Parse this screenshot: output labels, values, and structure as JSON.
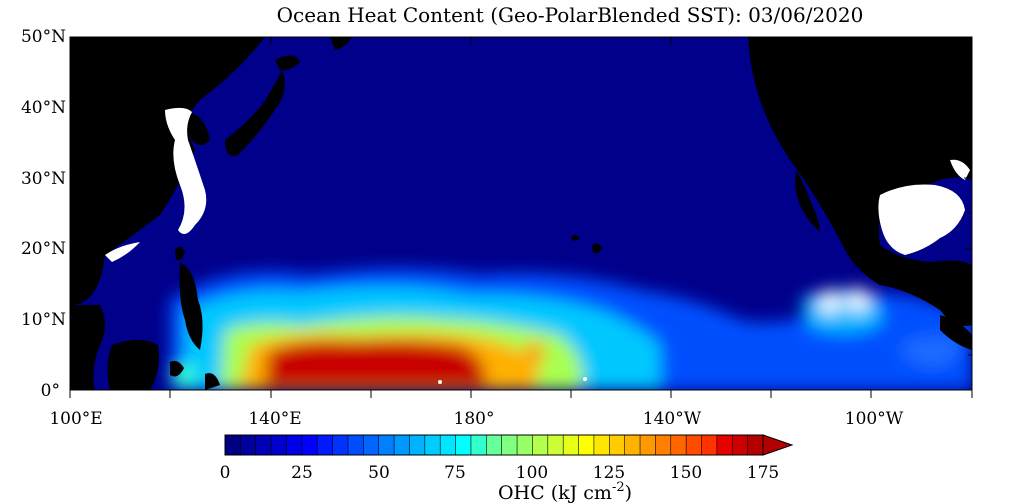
{
  "title": "Ocean Heat Content (Geo-PolarBlended SST): 03/06/2020",
  "map": {
    "lat_labels": [
      "50°N",
      "40°N",
      "30°N",
      "20°N",
      "10°N",
      "0°"
    ],
    "lon_labels": [
      "100°E",
      "140°E",
      "180°",
      "140°W",
      "100°W"
    ],
    "extent": {
      "lon_min_east": 100,
      "lon_max_east": 280,
      "lat_min": 0,
      "lat_max": 50
    },
    "colors": {
      "land": "#000000",
      "ocean_low": "#00008b",
      "no_data": "#ffffff"
    }
  },
  "colorbar": {
    "tick_labels": [
      "0",
      "25",
      "50",
      "75",
      "100",
      "125",
      "150",
      "175"
    ],
    "label": "OHC (kJ cm",
    "label_exponent": "-2",
    "label_close": ")",
    "min": 0,
    "max": 175,
    "extend": "max",
    "colors": [
      "#000080",
      "#00009d",
      "#0000b5",
      "#0000cd",
      "#0000e6",
      "#0000ff",
      "#0019ff",
      "#0033ff",
      "#004cff",
      "#0066ff",
      "#0080ff",
      "#0099ff",
      "#00b3ff",
      "#00ccff",
      "#00e6ff",
      "#00ffff",
      "#33ffcc",
      "#66ff99",
      "#80ff80",
      "#99ff66",
      "#b3ff4c",
      "#ccff33",
      "#e6ff19",
      "#ffff00",
      "#ffe600",
      "#ffcc00",
      "#ffb300",
      "#ff9900",
      "#ff8000",
      "#ff6600",
      "#ff4c00",
      "#ff3300",
      "#e60000",
      "#cc0000",
      "#b30000"
    ]
  }
}
